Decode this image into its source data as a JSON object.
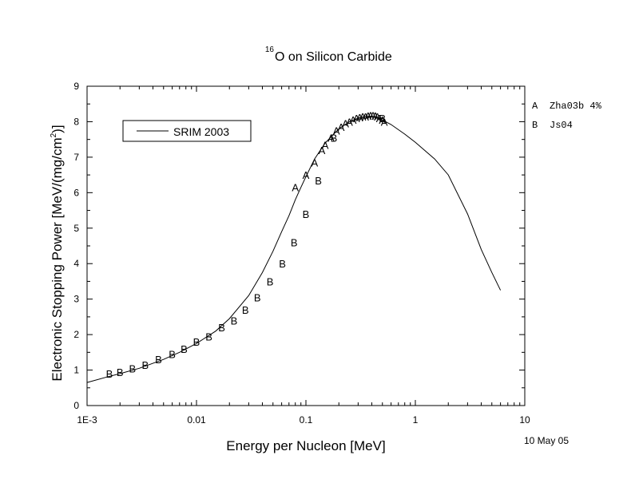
{
  "chart_data": {
    "type": "scatter",
    "title_main": "O on Silicon Carbide",
    "title_superscript": "16",
    "xlabel": "Energy per Nucleon [MeV]",
    "ylabel_main": "Electronic Stopping Power [MeV/(mg/cm",
    "ylabel_superscript": "2",
    "ylabel_tail": ")]",
    "x_scale": "log",
    "xlim": [
      0.001,
      10
    ],
    "ylim": [
      0,
      9
    ],
    "x_tick_labels": [
      {
        "value": 0.001,
        "label": "1E-3"
      },
      {
        "value": 0.01,
        "label": "0.01"
      },
      {
        "value": 0.1,
        "label": "0.1"
      },
      {
        "value": 1,
        "label": "1"
      },
      {
        "value": 10,
        "label": "10"
      }
    ],
    "y_ticks": [
      0,
      1,
      2,
      3,
      4,
      5,
      6,
      7,
      8,
      9
    ],
    "grid": false,
    "legend": {
      "placement": "top-left",
      "line_label": "SRIM 2003"
    },
    "marker_legend": {
      "placement": "right",
      "entries": [
        {
          "symbol": "A",
          "label": "Zha03b 4%"
        },
        {
          "symbol": "B",
          "label": "Js04"
        }
      ]
    },
    "date_stamp": "10 May 05",
    "srim_curve": {
      "name": "SRIM 2003",
      "points": [
        [
          0.001,
          0.65
        ],
        [
          0.0015,
          0.8
        ],
        [
          0.002,
          0.9
        ],
        [
          0.003,
          1.05
        ],
        [
          0.005,
          1.3
        ],
        [
          0.007,
          1.5
        ],
        [
          0.01,
          1.75
        ],
        [
          0.015,
          2.1
        ],
        [
          0.02,
          2.45
        ],
        [
          0.03,
          3.1
        ],
        [
          0.04,
          3.75
        ],
        [
          0.05,
          4.35
        ],
        [
          0.06,
          4.9
        ],
        [
          0.07,
          5.35
        ],
        [
          0.08,
          5.8
        ],
        [
          0.09,
          6.15
        ],
        [
          0.1,
          6.45
        ],
        [
          0.12,
          6.95
        ],
        [
          0.15,
          7.4
        ],
        [
          0.2,
          7.8
        ],
        [
          0.25,
          8.0
        ],
        [
          0.3,
          8.1
        ],
        [
          0.35,
          8.15
        ],
        [
          0.4,
          8.15
        ],
        [
          0.5,
          8.05
        ],
        [
          0.6,
          7.92
        ],
        [
          0.8,
          7.65
        ],
        [
          1.0,
          7.42
        ],
        [
          1.5,
          6.95
        ],
        [
          2.0,
          6.5
        ],
        [
          3.0,
          5.4
        ],
        [
          4.0,
          4.4
        ],
        [
          5.0,
          3.75
        ],
        [
          6.0,
          3.25
        ]
      ]
    },
    "series": [
      {
        "symbol": "A",
        "points": [
          [
            0.08,
            6.15
          ],
          [
            0.1,
            6.5
          ],
          [
            0.12,
            6.85
          ],
          [
            0.14,
            7.2
          ],
          [
            0.15,
            7.35
          ],
          [
            0.17,
            7.55
          ],
          [
            0.19,
            7.75
          ],
          [
            0.21,
            7.85
          ],
          [
            0.23,
            7.95
          ],
          [
            0.25,
            8.0
          ],
          [
            0.27,
            8.05
          ],
          [
            0.29,
            8.1
          ],
          [
            0.31,
            8.12
          ],
          [
            0.33,
            8.15
          ],
          [
            0.35,
            8.15
          ],
          [
            0.37,
            8.17
          ],
          [
            0.39,
            8.18
          ],
          [
            0.41,
            8.18
          ],
          [
            0.43,
            8.17
          ],
          [
            0.45,
            8.15
          ],
          [
            0.47,
            8.1
          ],
          [
            0.5,
            8.05
          ],
          [
            0.52,
            8.0
          ]
        ]
      },
      {
        "symbol": "B",
        "points": [
          [
            0.0016,
            0.9
          ],
          [
            0.002,
            0.95
          ],
          [
            0.0026,
            1.05
          ],
          [
            0.0034,
            1.15
          ],
          [
            0.0045,
            1.3
          ],
          [
            0.006,
            1.45
          ],
          [
            0.0077,
            1.6
          ],
          [
            0.01,
            1.8
          ],
          [
            0.013,
            1.95
          ],
          [
            0.017,
            2.2
          ],
          [
            0.022,
            2.4
          ],
          [
            0.028,
            2.7
          ],
          [
            0.036,
            3.05
          ],
          [
            0.047,
            3.5
          ],
          [
            0.061,
            4.0
          ],
          [
            0.078,
            4.6
          ],
          [
            0.1,
            5.4
          ],
          [
            0.13,
            6.35
          ],
          [
            0.18,
            7.55
          ],
          [
            0.5,
            8.1
          ]
        ]
      }
    ]
  }
}
